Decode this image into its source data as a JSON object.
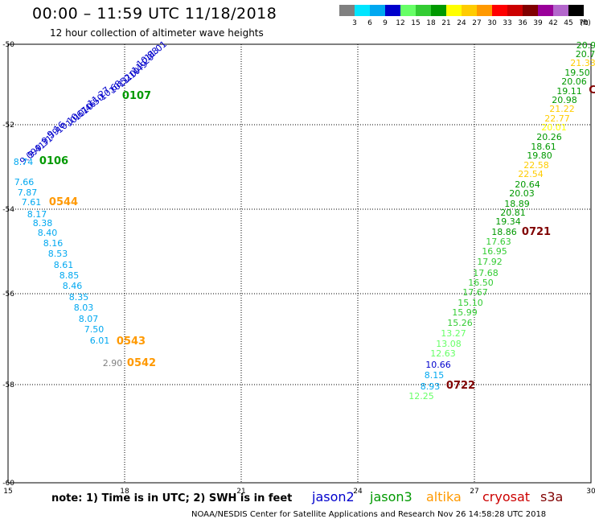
{
  "header": {
    "title": "00:00 – 11:59 UTC 11/18/2018",
    "subtitle": "12 hour collection of altimeter wave heights"
  },
  "colorbar": {
    "labels": [
      "3",
      "6",
      "9",
      "12",
      "15",
      "18",
      "21",
      "24",
      "27",
      "30",
      "33",
      "36",
      "39",
      "42",
      "45",
      "70"
    ],
    "unit": "(ft)",
    "colors": [
      "#808080",
      "#00e5ff",
      "#00a8f0",
      "#0000cc",
      "#66ff66",
      "#33cc33",
      "#009900",
      "#ffff00",
      "#ffcc00",
      "#ff9900",
      "#ff0000",
      "#cc0000",
      "#800000",
      "#990099",
      "#b366cc",
      "#000000"
    ]
  },
  "axes": {
    "x_ticks": [
      "15",
      "18",
      "21",
      "24",
      "27",
      "30"
    ],
    "y_ticks": [
      "-50",
      "-52",
      "-54",
      "-56",
      "-58",
      "-60"
    ]
  },
  "colors": {
    "jason2": "#0000cc",
    "jason3": "#009900",
    "altika": "#ff9900",
    "cryosat": "#cc0000",
    "s3a": "#800000"
  },
  "map_data": {
    "west_track": [
      {
        "v": "11.01",
        "c": "#0000cc"
      },
      {
        "v": "10.88",
        "c": "#0000cc"
      },
      {
        "v": "11.20",
        "c": "#0000cc"
      },
      {
        "v": "10.49",
        "c": "#0000cc"
      },
      {
        "v": "11.10",
        "c": "#0000cc"
      },
      {
        "v": "10.52",
        "c": "#0000cc"
      },
      {
        "v": "10.68",
        "c": "#0000cc"
      },
      {
        "v": "11.27",
        "c": "#0000cc"
      },
      {
        "v": "10.50",
        "c": "#0000cc"
      },
      {
        "v": "10.46",
        "c": "#0000cc"
      },
      {
        "v": "10.67",
        "c": "#0000cc"
      },
      {
        "v": "10.10",
        "c": "#0000cc"
      },
      {
        "v": "9.16",
        "c": "#0000cc"
      },
      {
        "v": "9.59",
        "c": "#0000cc"
      },
      {
        "v": "9.31",
        "c": "#0000cc"
      },
      {
        "v": "9.41",
        "c": "#0000cc"
      },
      {
        "v": "9.09",
        "c": "#0000cc"
      },
      {
        "v": "8.74",
        "c": "#00a8f0"
      },
      {
        "v": "7.66",
        "c": "#00a8f0"
      },
      {
        "v": "7.87",
        "c": "#00a8f0"
      },
      {
        "v": "7.61",
        "c": "#00a8f0"
      },
      {
        "v": "8.17",
        "c": "#00a8f0"
      },
      {
        "v": "8.38",
        "c": "#00a8f0"
      },
      {
        "v": "8.40",
        "c": "#00a8f0"
      },
      {
        "v": "8.16",
        "c": "#00a8f0"
      },
      {
        "v": "8.53",
        "c": "#00a8f0"
      },
      {
        "v": "8.61",
        "c": "#00a8f0"
      },
      {
        "v": "8.85",
        "c": "#00a8f0"
      },
      {
        "v": "8.46",
        "c": "#00a8f0"
      },
      {
        "v": "8.35",
        "c": "#00a8f0"
      },
      {
        "v": "8.03",
        "c": "#00a8f0"
      },
      {
        "v": "8.07",
        "c": "#00a8f0"
      },
      {
        "v": "7.50",
        "c": "#00a8f0"
      },
      {
        "v": "6.01",
        "c": "#00a8f0"
      },
      {
        "v": "2.90",
        "c": "#808080"
      }
    ],
    "east_track": [
      {
        "v": "20.9",
        "c": "#009900"
      },
      {
        "v": "20.7",
        "c": "#009900"
      },
      {
        "v": "21.33",
        "c": "#ffcc00"
      },
      {
        "v": "19.50",
        "c": "#009900"
      },
      {
        "v": "20.06",
        "c": "#009900"
      },
      {
        "v": "19.11",
        "c": "#009900"
      },
      {
        "v": "20.98",
        "c": "#009900"
      },
      {
        "v": "21.22",
        "c": "#ffcc00"
      },
      {
        "v": "22.77",
        "c": "#ffcc00"
      },
      {
        "v": "20.01",
        "c": "#ffff00"
      },
      {
        "v": "20.26",
        "c": "#009900"
      },
      {
        "v": "18.61",
        "c": "#009900"
      },
      {
        "v": "19.80",
        "c": "#009900"
      },
      {
        "v": "22.58",
        "c": "#ffcc00"
      },
      {
        "v": "22.54",
        "c": "#ffcc00"
      },
      {
        "v": "20.64",
        "c": "#009900"
      },
      {
        "v": "20.03",
        "c": "#009900"
      },
      {
        "v": "18.89",
        "c": "#009900"
      },
      {
        "v": "20.81",
        "c": "#009900"
      },
      {
        "v": "19.34",
        "c": "#009900"
      },
      {
        "v": "18.86",
        "c": "#009900"
      },
      {
        "v": "17.63",
        "c": "#33cc33"
      },
      {
        "v": "16.95",
        "c": "#33cc33"
      },
      {
        "v": "17.92",
        "c": "#33cc33"
      },
      {
        "v": "17.68",
        "c": "#33cc33"
      },
      {
        "v": "16.50",
        "c": "#33cc33"
      },
      {
        "v": "17.67",
        "c": "#33cc33"
      },
      {
        "v": "15.10",
        "c": "#33cc33"
      },
      {
        "v": "15.99",
        "c": "#33cc33"
      },
      {
        "v": "15.26",
        "c": "#33cc33"
      },
      {
        "v": "13.27",
        "c": "#66ff66"
      },
      {
        "v": "13.08",
        "c": "#66ff66"
      },
      {
        "v": "12.63",
        "c": "#66ff66"
      },
      {
        "v": "10.66",
        "c": "#0000cc"
      },
      {
        "v": "8.15",
        "c": "#00a8f0"
      },
      {
        "v": "8.93",
        "c": "#00a8f0"
      },
      {
        "v": "12.25",
        "c": "#66ff66"
      }
    ],
    "time_labels": [
      {
        "t": "0107",
        "c": "#009900"
      },
      {
        "t": "0106",
        "c": "#009900"
      },
      {
        "t": "0544",
        "c": "#ff9900"
      },
      {
        "t": "0543",
        "c": "#ff9900"
      },
      {
        "t": "0542",
        "c": "#ff9900"
      },
      {
        "t": "0721",
        "c": "#800000"
      },
      {
        "t": "0722",
        "c": "#800000"
      },
      {
        "t": "C",
        "c": "#800000"
      }
    ]
  },
  "footer": {
    "note": "note:  1) Time is in UTC;  2) SWH is in feet",
    "satellites": [
      "jason2",
      "jason3",
      "altika",
      "cryosat",
      "s3a"
    ],
    "credit": "NOAA/NESDIS Center for Satellite Applications and Research    Nov 26 14:58:28 UTC 2018"
  }
}
